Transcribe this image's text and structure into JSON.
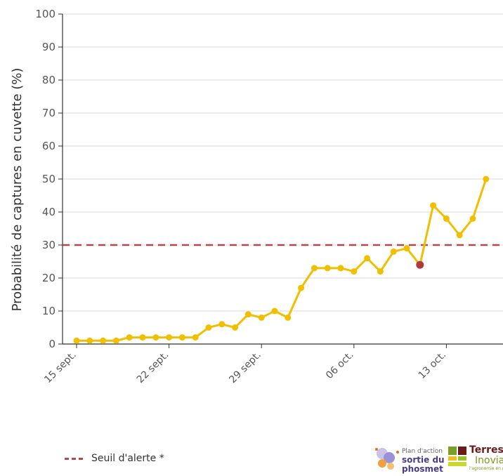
{
  "chart_data": {
    "type": "line",
    "ylabel": "Probabilité de captures en cuvette (%)",
    "ylim": [
      0,
      100
    ],
    "yticks": [
      0,
      10,
      20,
      30,
      40,
      50,
      60,
      70,
      80,
      90,
      100
    ],
    "xticks": [
      "15 sept.",
      "22 sept.",
      "29 sept.",
      "06 oct.",
      "13 oct."
    ],
    "grid": true,
    "series": [
      {
        "color": "#f0c000",
        "x": [
          "2024-09-15",
          "2024-09-16",
          "2024-09-17",
          "2024-09-18",
          "2024-09-19",
          "2024-09-20",
          "2024-09-21",
          "2024-09-22",
          "2024-09-23",
          "2024-09-24",
          "2024-09-25",
          "2024-09-26",
          "2024-09-27",
          "2024-09-28",
          "2024-09-29",
          "2024-09-30",
          "2024-10-01",
          "2024-10-02",
          "2024-10-03",
          "2024-10-04",
          "2024-10-05",
          "2024-10-06",
          "2024-10-07",
          "2024-10-08",
          "2024-10-09",
          "2024-10-10",
          "2024-10-11",
          "2024-10-12",
          "2024-10-13",
          "2024-10-14",
          "2024-10-15",
          "2024-10-16"
        ],
        "values": [
          1,
          1,
          1,
          1,
          2,
          2,
          2,
          2,
          2,
          2,
          5,
          6,
          5,
          9,
          8,
          10,
          8,
          17,
          23,
          23,
          23,
          22,
          26,
          22,
          28,
          29,
          24,
          42,
          38,
          33,
          38,
          50
        ]
      }
    ],
    "highlight": {
      "x": "2024-10-11",
      "value": 24,
      "color": "#b03a3a"
    },
    "threshold": {
      "value": 30,
      "color": "#b04a4a",
      "style": "dashed",
      "label": "Seuil d'alerte *"
    }
  },
  "legend": {
    "label": "Seuil d'alerte *"
  },
  "logos": {
    "phosmet_small": "Plan d'action",
    "phosmet_line1": "sortie du",
    "phosmet_line2": "phosmet",
    "terres": "Terres",
    "inovia": "Inovia",
    "inovia_tag": "l'agronomie en mouvement"
  }
}
